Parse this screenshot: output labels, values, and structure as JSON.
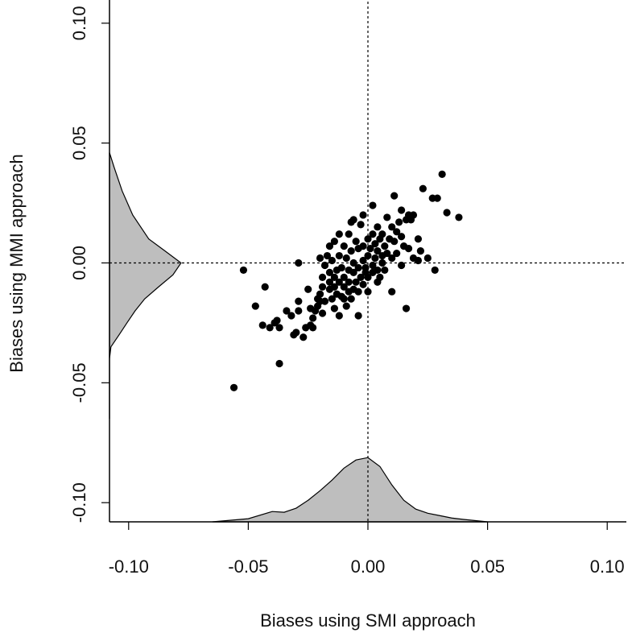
{
  "chart_data": {
    "type": "scatter",
    "x_label": "Biases using SMI approach",
    "y_label": "Biases using MMI approach",
    "xlim": [
      -0.108,
      0.108
    ],
    "ylim": [
      -0.108,
      0.109
    ],
    "xticks": [
      {
        "value": -0.1,
        "label": "-0.10"
      },
      {
        "value": -0.05,
        "label": "-0.05"
      },
      {
        "value": 0,
        "label": "0.00"
      },
      {
        "value": 0.05,
        "label": "0.05"
      },
      {
        "value": 0.1,
        "label": "0.10"
      }
    ],
    "yticks": [
      {
        "value": -0.1,
        "label": "-0.10"
      },
      {
        "value": -0.05,
        "label": "-0.05"
      },
      {
        "value": 0,
        "label": "0.00"
      },
      {
        "value": 0.05,
        "label": "0.05"
      },
      {
        "value": 0.1,
        "label": "0.10"
      }
    ],
    "ref_lines": {
      "x": 0,
      "y": 0
    },
    "point_color": "#000000",
    "density_color": "#bebebe",
    "x_density": {
      "x": [
        -0.065,
        -0.05,
        -0.04,
        -0.035,
        -0.03,
        -0.025,
        -0.02,
        -0.015,
        -0.01,
        -0.005,
        0,
        0.005,
        0.01,
        0.015,
        0.02,
        0.025,
        0.03,
        0.035,
        0.04,
        0.05
      ],
      "y": [
        -0.108,
        -0.1067,
        -0.1037,
        -0.104,
        -0.1023,
        -0.099,
        -0.095,
        -0.0906,
        -0.0856,
        -0.0822,
        -0.0812,
        -0.0849,
        -0.0926,
        -0.099,
        -0.1027,
        -0.1044,
        -0.1054,
        -0.1064,
        -0.107,
        -0.108
      ]
    },
    "y_density": {
      "y": [
        0.046,
        0.04,
        0.03,
        0.02,
        0.01,
        0.005,
        0,
        -0.005,
        -0.01,
        -0.015,
        -0.02,
        -0.025,
        -0.03,
        -0.035,
        -0.04,
        -0.065
      ],
      "x": [
        -0.108,
        -0.1061,
        -0.1027,
        -0.0983,
        -0.0916,
        -0.0848,
        -0.0781,
        -0.0815,
        -0.0875,
        -0.0933,
        -0.0973,
        -0.1007,
        -0.104,
        -0.1074,
        -0.108,
        -0.108
      ]
    },
    "x": [
      -0.056,
      -0.052,
      -0.047,
      -0.043,
      -0.044,
      -0.041,
      -0.039,
      -0.037,
      -0.038,
      -0.034,
      -0.032,
      -0.029,
      -0.03,
      -0.027,
      -0.029,
      -0.029,
      -0.025,
      -0.024,
      -0.023,
      -0.023,
      -0.022,
      -0.021,
      -0.02,
      -0.019,
      -0.019,
      -0.02,
      -0.019,
      -0.018,
      -0.018,
      -0.017,
      -0.016,
      -0.016,
      -0.016,
      -0.016,
      -0.015,
      -0.015,
      -0.014,
      -0.014,
      -0.014,
      -0.014,
      -0.013,
      -0.013,
      -0.012,
      -0.012,
      -0.012,
      -0.012,
      -0.011,
      -0.011,
      -0.01,
      -0.01,
      -0.01,
      -0.01,
      -0.009,
      -0.009,
      -0.008,
      -0.008,
      -0.008,
      -0.008,
      -0.007,
      -0.007,
      -0.007,
      -0.006,
      -0.006,
      -0.006,
      -0.006,
      -0.005,
      -0.005,
      -0.004,
      -0.004,
      -0.004,
      -0.004,
      -0.003,
      -0.003,
      -0.002,
      -0.002,
      -0.002,
      -0.002,
      -0.001,
      -0.001,
      0.0,
      0.0,
      0.0,
      0.0,
      0.001,
      0.002,
      0.002,
      0.002,
      0.002,
      0.003,
      0.003,
      0.004,
      0.004,
      0.004,
      0.004,
      0.005,
      0.005,
      0.006,
      0.006,
      0.006,
      0.007,
      0.007,
      0.008,
      0.008,
      0.009,
      0.01,
      0.01,
      0.01,
      0.011,
      0.011,
      0.012,
      0.012,
      0.013,
      0.014,
      0.014,
      0.014,
      0.015,
      0.016,
      0.016,
      0.017,
      0.017,
      0.018,
      0.019,
      0.019,
      0.021,
      0.021,
      0.022,
      0.023,
      0.025,
      0.027,
      0.028,
      0.029,
      0.031,
      0.033,
      0.038,
      -0.02,
      -0.021,
      -0.024,
      -0.026,
      -0.031,
      -0.037
    ],
    "y": [
      -0.052,
      -0.003,
      -0.018,
      -0.01,
      -0.026,
      -0.027,
      -0.025,
      -0.042,
      -0.024,
      -0.02,
      -0.022,
      -0.016,
      -0.029,
      -0.031,
      -0.02,
      0.0,
      -0.011,
      -0.026,
      -0.027,
      -0.023,
      -0.02,
      -0.018,
      -0.013,
      -0.01,
      -0.006,
      0.002,
      -0.021,
      -0.016,
      -0.001,
      0.003,
      -0.004,
      -0.011,
      -0.008,
      0.007,
      0.001,
      -0.015,
      0.009,
      -0.006,
      -0.01,
      -0.019,
      -0.013,
      -0.003,
      0.003,
      0.012,
      -0.008,
      -0.022,
      -0.014,
      -0.002,
      0.007,
      -0.01,
      -0.006,
      -0.015,
      -0.018,
      0.002,
      -0.012,
      -0.003,
      0.012,
      -0.008,
      0.017,
      0.005,
      -0.015,
      -0.004,
      -0.011,
      0.0,
      0.018,
      -0.008,
      0.009,
      -0.002,
      -0.022,
      0.006,
      -0.012,
      -0.006,
      0.016,
      0.001,
      -0.009,
      0.02,
      0.007,
      -0.004,
      -0.002,
      0.003,
      0.01,
      -0.006,
      -0.012,
      0.006,
      -0.001,
      0.012,
      0.024,
      -0.004,
      0.002,
      0.008,
      0.015,
      -0.008,
      -0.003,
      0.005,
      -0.006,
      0.01,
      0.0,
      0.003,
      0.012,
      0.007,
      -0.003,
      0.004,
      0.019,
      0.01,
      0.015,
      0.002,
      -0.012,
      0.028,
      0.009,
      0.004,
      0.013,
      0.017,
      0.022,
      -0.001,
      0.011,
      0.007,
      0.018,
      -0.019,
      0.02,
      0.006,
      0.018,
      0.02,
      0.002,
      0.01,
      0.001,
      0.005,
      0.031,
      0.002,
      0.027,
      -0.003,
      0.027,
      0.037,
      0.021,
      0.019,
      -0.016,
      -0.015,
      -0.019,
      -0.027,
      -0.03,
      -0.027
    ]
  }
}
